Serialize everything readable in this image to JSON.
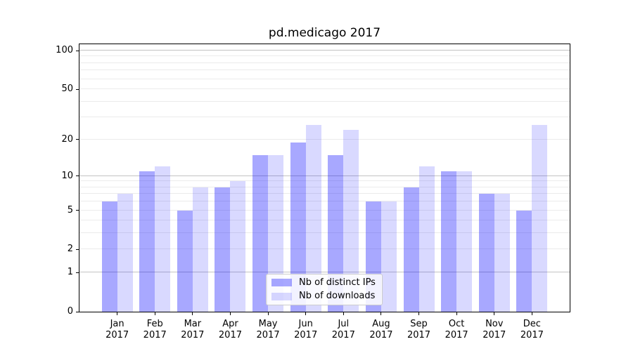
{
  "chart_data": {
    "type": "bar",
    "title": "pd.medicago 2017",
    "categories": [
      "Jan",
      "Feb",
      "Mar",
      "Apr",
      "May",
      "Jun",
      "Jul",
      "Aug",
      "Sep",
      "Oct",
      "Nov",
      "Dec"
    ],
    "year_label": "2017",
    "series": [
      {
        "name": "Nb of distinct IPs",
        "color": "#0000ff",
        "alpha": 0.34,
        "values": [
          6,
          11,
          5,
          8,
          15,
          19,
          15,
          6,
          8,
          11,
          7,
          5
        ]
      },
      {
        "name": "Nb of downloads",
        "color": "#0000ff",
        "alpha": 0.15,
        "values": [
          7,
          12,
          8,
          9,
          15,
          26,
          24,
          6,
          12,
          11,
          7,
          26
        ]
      }
    ],
    "yscale": "log1p",
    "ylim": [
      0,
      112
    ],
    "y_ticks": {
      "values": [
        0,
        1,
        2,
        5,
        10,
        20,
        50,
        100
      ],
      "labels": [
        "0",
        "1",
        "2",
        "5",
        "10",
        "20",
        "50",
        "100"
      ]
    },
    "grid": {
      "major": [
        1,
        10,
        100
      ],
      "minor": [
        2,
        3,
        4,
        5,
        6,
        7,
        8,
        9,
        20,
        30,
        40,
        50,
        60,
        70,
        80,
        90
      ]
    },
    "legend": {
      "position": "lower center"
    },
    "colors": {
      "grid_major": "#c3c3c3",
      "grid_minor": "#ebebeb",
      "axis": "#000000",
      "background": "#ffffff",
      "bar_ips_rendered": "#a8a8ff",
      "bar_downloads_rendered": "#d9d9ff"
    }
  }
}
